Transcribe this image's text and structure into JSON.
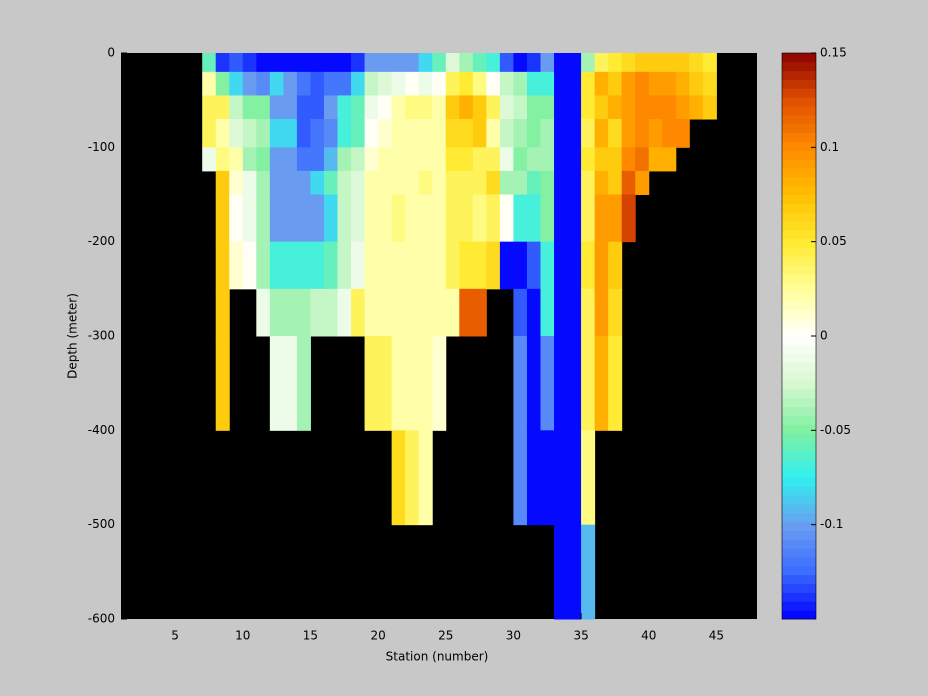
{
  "chart_data": {
    "type": "heatmap",
    "xlabel": "Station (number)",
    "ylabel": "Depth (meter)",
    "xlim": [
      1,
      48
    ],
    "xticks": [
      5,
      10,
      15,
      20,
      25,
      30,
      35,
      40,
      45
    ],
    "ylim": [
      -600,
      0
    ],
    "yticks": [
      -600,
      -500,
      -400,
      -300,
      -200,
      -100,
      0
    ],
    "xedges": [
      7,
      8,
      9,
      10,
      11,
      12,
      13,
      14,
      15,
      16,
      17,
      18,
      19,
      20,
      21,
      22,
      23,
      24,
      25,
      26,
      27,
      28,
      29,
      30,
      31,
      32,
      33,
      34,
      35,
      36,
      37,
      38,
      39,
      40,
      41,
      42,
      43,
      44,
      45
    ],
    "yedges": [
      0,
      -20,
      -45,
      -70,
      -100,
      -125,
      -150,
      -200,
      -250,
      -300,
      -400,
      -500,
      -600
    ],
    "clim": [
      -0.15,
      0.15
    ],
    "cticks": [
      -0.1,
      -0.05,
      0,
      0.05,
      0.1,
      0.15
    ],
    "colormap": [
      "#0000ff",
      "#3a6cff",
      "#6a9ef0",
      "#30f0f0",
      "#80f0a0",
      "#d8f8d0",
      "#ffffff",
      "#ffff99",
      "#ffea30",
      "#ffbf00",
      "#ff8a00",
      "#e05000",
      "#8b0000"
    ],
    "levels": 64,
    "background": "#000000",
    "z": [
      [
        -0.06,
        0.02,
        0.04,
        0.04,
        -0.01,
        null,
        null,
        null,
        null,
        null,
        null,
        null
      ],
      [
        -0.14,
        -0.05,
        0.04,
        0.02,
        0.03,
        0.07,
        0.07,
        0.07,
        0.07,
        0.07,
        null,
        null
      ],
      [
        -0.13,
        -0.08,
        -0.03,
        -0.02,
        0.02,
        0.01,
        0,
        0.01,
        null,
        null,
        null,
        null
      ],
      [
        -0.14,
        -0.1,
        -0.05,
        -0.03,
        -0.04,
        -0.01,
        -0.01,
        0,
        null,
        null,
        null,
        null
      ],
      [
        -0.15,
        -0.11,
        -0.05,
        -0.04,
        -0.05,
        -0.04,
        -0.04,
        -0.04,
        -0.01,
        null,
        null,
        null
      ],
      [
        -0.15,
        -0.08,
        -0.1,
        -0.08,
        -0.1,
        -0.1,
        -0.1,
        -0.07,
        -0.04,
        -0.01,
        null,
        null
      ],
      [
        -0.15,
        -0.1,
        -0.1,
        -0.08,
        -0.1,
        -0.1,
        -0.1,
        -0.07,
        -0.04,
        -0.01,
        null,
        null
      ],
      [
        -0.15,
        -0.12,
        -0.13,
        -0.13,
        -0.12,
        -0.1,
        -0.1,
        -0.07,
        -0.04,
        -0.04,
        null,
        null
      ],
      [
        -0.15,
        -0.13,
        -0.13,
        -0.12,
        -0.12,
        -0.08,
        -0.1,
        -0.07,
        -0.03,
        null,
        null,
        null
      ],
      [
        -0.15,
        -0.12,
        -0.1,
        -0.11,
        -0.09,
        -0.06,
        -0.08,
        -0.06,
        -0.03,
        null,
        null,
        null
      ],
      [
        -0.15,
        -0.12,
        -0.07,
        -0.07,
        -0.04,
        -0.03,
        -0.03,
        -0.03,
        -0.01,
        null,
        null,
        null
      ],
      [
        -0.14,
        -0.08,
        -0.06,
        -0.06,
        -0.03,
        -0.02,
        -0.02,
        -0.01,
        0.04,
        null,
        null,
        null
      ],
      [
        -0.1,
        -0.03,
        -0.01,
        0,
        0.01,
        0.02,
        0.02,
        0.02,
        0.02,
        0.04,
        null,
        null
      ],
      [
        -0.1,
        -0.02,
        0,
        0.01,
        0.02,
        0.02,
        0.02,
        0.02,
        0.02,
        0.04,
        null,
        null
      ],
      [
        -0.1,
        -0.01,
        0.02,
        0.02,
        0.02,
        0.02,
        0.03,
        0.02,
        0.02,
        0.02,
        0.06,
        null
      ],
      [
        -0.1,
        0,
        0.03,
        0.02,
        0.02,
        0.02,
        0.02,
        0.02,
        0.02,
        0.02,
        0.04,
        null
      ],
      [
        -0.08,
        -0.01,
        0.03,
        0.02,
        0.02,
        0.03,
        0.02,
        0.02,
        0.02,
        0.02,
        0.02,
        null
      ],
      [
        -0.06,
        0,
        0.02,
        0.02,
        0.02,
        0.02,
        0.02,
        0.02,
        0.02,
        0.01,
        null,
        null
      ],
      [
        -0.02,
        0.04,
        0.07,
        0.06,
        0.05,
        0.04,
        0.04,
        0.04,
        0.02,
        null,
        null,
        null
      ],
      [
        -0.04,
        0.05,
        0.08,
        0.06,
        0.05,
        0.04,
        0.04,
        0.05,
        0.12,
        null,
        null,
        null
      ],
      [
        -0.06,
        0.03,
        0.07,
        0.07,
        0.04,
        0.04,
        0.03,
        0.05,
        0.12,
        null,
        null,
        null
      ],
      [
        -0.07,
        0,
        0.04,
        0.02,
        0.04,
        0.06,
        0.04,
        0.06,
        null,
        null,
        null,
        null
      ],
      [
        -0.13,
        -0.03,
        -0.02,
        -0.03,
        -0.01,
        -0.04,
        0,
        -0.15,
        null,
        null,
        null,
        null
      ],
      [
        -0.15,
        -0.04,
        -0.03,
        -0.04,
        -0.05,
        -0.04,
        -0.07,
        -0.15,
        -0.13,
        -0.11,
        -0.11,
        null
      ],
      [
        -0.14,
        -0.07,
        -0.05,
        -0.05,
        -0.04,
        -0.06,
        -0.07,
        -0.13,
        -0.15,
        -0.15,
        -0.15,
        null
      ],
      [
        -0.1,
        -0.07,
        -0.05,
        -0.04,
        -0.04,
        -0.05,
        -0.05,
        -0.07,
        -0.07,
        -0.11,
        -0.15,
        null
      ],
      [
        -0.15,
        -0.15,
        -0.15,
        -0.15,
        -0.15,
        -0.15,
        -0.15,
        -0.15,
        -0.15,
        -0.15,
        -0.15,
        -0.15
      ],
      [
        -0.15,
        -0.15,
        -0.15,
        -0.15,
        -0.15,
        -0.15,
        -0.15,
        -0.15,
        -0.15,
        -0.15,
        -0.15,
        -0.15
      ],
      [
        -0.04,
        0.05,
        0.05,
        0.04,
        0.05,
        0.04,
        0.04,
        0.05,
        0.04,
        0.04,
        0.03,
        -0.09
      ],
      [
        0.04,
        0.08,
        0.07,
        0.08,
        0.07,
        0.08,
        0.09,
        0.09,
        0.09,
        0.08,
        null,
        null
      ],
      [
        0.05,
        0.07,
        0.08,
        0.06,
        0.07,
        0.07,
        0.09,
        0.07,
        0.06,
        0.05,
        null,
        null
      ],
      [
        0.06,
        0.09,
        0.09,
        0.09,
        0.1,
        0.12,
        0.13,
        null,
        null,
        null,
        null,
        null
      ],
      [
        0.07,
        0.1,
        0.1,
        0.1,
        0.11,
        0.09,
        null,
        null,
        null,
        null,
        null,
        null
      ],
      [
        0.07,
        0.09,
        0.1,
        0.09,
        0.08,
        null,
        null,
        null,
        null,
        null,
        null,
        null
      ],
      [
        0.07,
        0.09,
        0.1,
        0.1,
        0.08,
        null,
        null,
        null,
        null,
        null,
        null,
        null
      ],
      [
        0.07,
        0.08,
        0.09,
        0.1,
        null,
        null,
        null,
        null,
        null,
        null,
        null,
        null
      ],
      [
        0.06,
        0.07,
        0.08,
        null,
        null,
        null,
        null,
        null,
        null,
        null,
        null,
        null
      ],
      [
        0.05,
        0.06,
        0.07,
        null,
        null,
        null,
        null,
        null,
        null,
        null,
        null,
        null
      ]
    ]
  }
}
